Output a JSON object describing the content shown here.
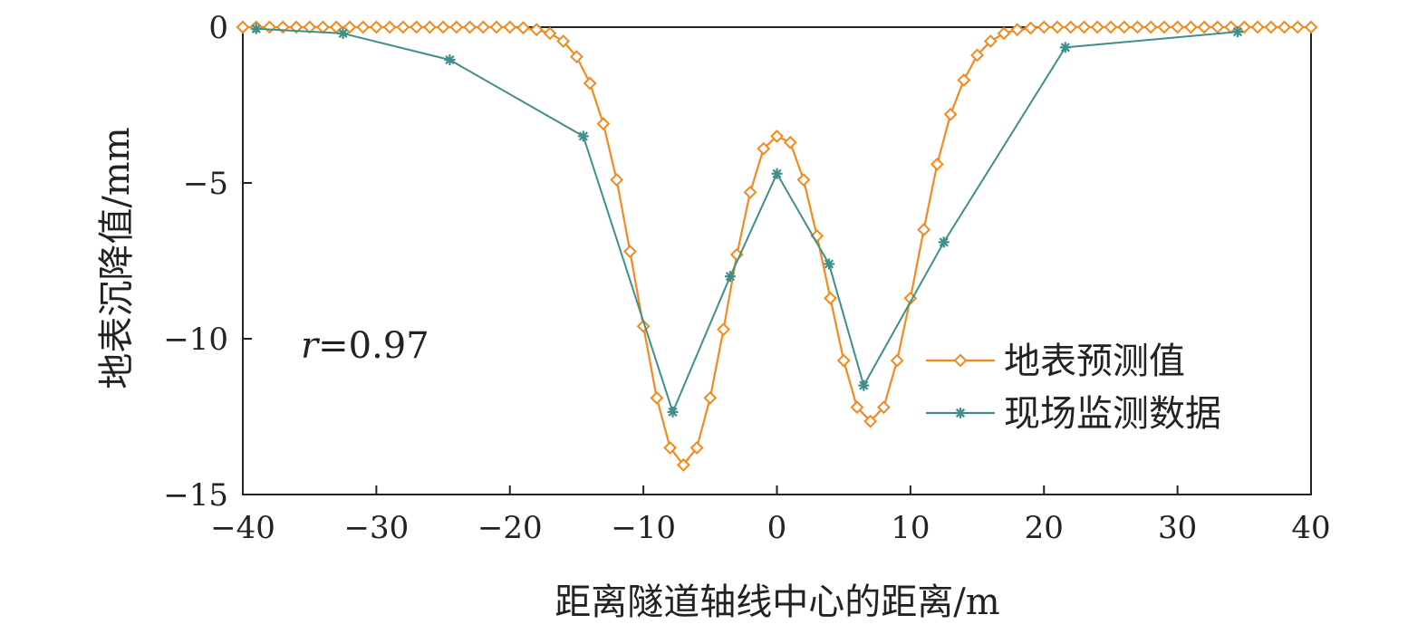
{
  "chart_data": {
    "type": "line",
    "title": "",
    "xlabel": "距离隧道轴线中心的距离/m",
    "ylabel": "地表沉降值/mm",
    "xlim": [
      -40,
      40
    ],
    "ylim": [
      -15,
      0
    ],
    "xticks": [
      -40,
      -30,
      -20,
      -10,
      0,
      10,
      20,
      30,
      40
    ],
    "yticks": [
      0,
      -5,
      -10,
      -15
    ],
    "xtick_labels": [
      "−40",
      "−30",
      "−20",
      "−10",
      "0",
      "10",
      "20",
      "30",
      "40"
    ],
    "ytick_labels": [
      "0",
      "−5",
      "−10",
      "−15"
    ],
    "grid": false,
    "legend_position": "center-right",
    "annotation": {
      "var": "r",
      "text": "=0.97"
    },
    "series": [
      {
        "name": "地表预测值",
        "color": "#f28a1e",
        "marker": "diamond",
        "x": [
          -40,
          -39,
          -38,
          -37,
          -36,
          -35,
          -34,
          -33,
          -32,
          -31,
          -30,
          -29,
          -28,
          -27,
          -26,
          -25,
          -24,
          -23,
          -22,
          -21,
          -20,
          -19,
          -18,
          -17,
          -16,
          -15,
          -14,
          -13,
          -12,
          -11,
          -10,
          -9,
          -8,
          -7,
          -6,
          -5,
          -4,
          -3,
          -2,
          -1,
          0,
          1,
          2,
          3,
          4,
          5,
          6,
          7,
          8,
          9,
          10,
          11,
          12,
          13,
          14,
          15,
          16,
          17,
          18,
          19,
          20,
          21,
          22,
          23,
          24,
          25,
          26,
          27,
          28,
          29,
          30,
          31,
          32,
          33,
          34,
          35,
          36,
          37,
          38,
          39,
          40
        ],
        "y": [
          0,
          0,
          0,
          0,
          0,
          0,
          0,
          0,
          0,
          0,
          0,
          0,
          0,
          0,
          0,
          0,
          0,
          0,
          0,
          0,
          0,
          -0.02,
          -0.08,
          -0.2,
          -0.45,
          -0.95,
          -1.8,
          -3.1,
          -4.9,
          -7.2,
          -9.6,
          -11.9,
          -13.5,
          -14.05,
          -13.5,
          -11.9,
          -9.7,
          -7.3,
          -5.3,
          -3.9,
          -3.5,
          -3.7,
          -4.9,
          -6.7,
          -8.7,
          -10.7,
          -12.2,
          -12.65,
          -12.2,
          -10.7,
          -8.7,
          -6.5,
          -4.4,
          -2.8,
          -1.7,
          -0.9,
          -0.45,
          -0.2,
          -0.08,
          -0.03,
          0,
          0,
          0,
          0,
          0,
          0,
          0,
          0,
          0,
          0,
          0,
          0,
          0,
          0,
          0,
          0,
          0,
          0,
          0,
          0,
          0
        ]
      },
      {
        "name": "现场监测数据",
        "color": "#3f8f8a",
        "marker": "asterisk",
        "x": [
          -39,
          -32.5,
          -24.5,
          -14.5,
          -7.8,
          -3.5,
          0,
          3.9,
          6.5,
          12.5,
          21.6,
          34.5
        ],
        "y": [
          -0.05,
          -0.2,
          -1.05,
          -3.5,
          -12.35,
          -8.0,
          -4.7,
          -7.6,
          -11.5,
          -6.9,
          -0.65,
          -0.15
        ]
      }
    ]
  }
}
